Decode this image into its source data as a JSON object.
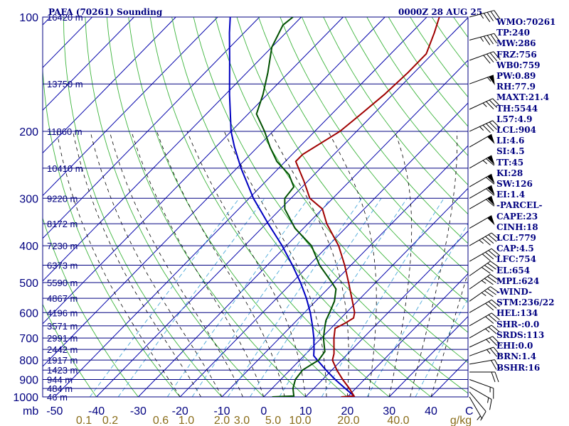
{
  "header": {
    "station_title": "PAFA (70261) Sounding",
    "time_title": "0000Z 28 AUG 25"
  },
  "indices": [
    "WMO:70261",
    "TP:240",
    "MW:286",
    "FRZ:756",
    "WB0:759",
    "PW:0.89",
    "RH:77.9",
    "MAXT:21.4",
    "TH:5544",
    "L57:4.9",
    "LCL:904",
    "LI:4.6",
    "SI:4.5",
    "TT:45",
    "KI:28",
    "SW:126",
    "EI:1.4",
    "-PARCEL-",
    "CAPE:23",
    "CINH:18",
    "LCL:779",
    "CAP:4.5",
    "LFC:754",
    "EL:654",
    "MPL:624",
    "-WIND-",
    "STM:236/22",
    "HEL:134",
    "SHR-:0.0",
    "SRDS:113",
    "EHI:0.0",
    "BRN:1.4",
    "BSHR:16"
  ],
  "colors": {
    "isobar": "#000080",
    "isotherm": "#0000aa",
    "dry_adiabat": "#3cb43c",
    "moist_adiabat": "#000000",
    "mixing_ratio": "#4aa8d8",
    "temperature": "#a00000",
    "dewpoint": "#005000",
    "parcel": "#0000c0",
    "wind_barb": "#000000"
  },
  "chart_data": {
    "type": "skew-t log-p",
    "pressure_axis": {
      "unit": "mb",
      "range": [
        1000,
        100
      ],
      "scale": "log",
      "tick_labels": [
        "100",
        "200",
        "300",
        "400",
        "500",
        "600",
        "700",
        "800",
        "900",
        "1000"
      ]
    },
    "temperature_axis": {
      "unit": "C",
      "ticks": [
        -50,
        -40,
        -30,
        -20,
        -10,
        0,
        10,
        20,
        30,
        40
      ],
      "tick_labels": [
        "-50",
        "-40",
        "-30",
        "-20",
        "-10",
        "0",
        "10",
        "20",
        "30",
        "40"
      ],
      "unit_label": "C"
    },
    "mixing_ratio_labels": [
      "0.1",
      "0.2",
      "0.6",
      "1.0",
      "2.0",
      "3.0",
      "5.0",
      "10.0",
      "20.0",
      "40.0",
      "g/kg"
    ],
    "mixing_ratio_values": [
      0.1,
      0.2,
      0.6,
      1.0,
      2.0,
      3.0,
      5.0,
      10.0,
      20.0,
      40.0
    ],
    "pressure_unit_label": "mb",
    "height_labels": [
      {
        "p": 100,
        "label": "16420 m"
      },
      {
        "p": 150,
        "label": "13750 m"
      },
      {
        "p": 200,
        "label": "11860 m"
      },
      {
        "p": 250,
        "label": "10410 m"
      },
      {
        "p": 300,
        "label": "9220 m"
      },
      {
        "p": 350,
        "label": "8172 m"
      },
      {
        "p": 400,
        "label": "7230 m"
      },
      {
        "p": 450,
        "label": "6373 m"
      },
      {
        "p": 500,
        "label": "5590 m"
      },
      {
        "p": 550,
        "label": "4867 m"
      },
      {
        "p": 600,
        "label": "4196 m"
      },
      {
        "p": 650,
        "label": "3571 m"
      },
      {
        "p": 700,
        "label": "2991 m"
      },
      {
        "p": 750,
        "label": "2442 m"
      },
      {
        "p": 800,
        "label": "1917 m"
      },
      {
        "p": 850,
        "label": "1423 m"
      },
      {
        "p": 900,
        "label": "944 m"
      },
      {
        "p": 950,
        "label": "484 m"
      },
      {
        "p": 1000,
        "label": "46 m"
      }
    ],
    "temperature_profile": [
      [
        1000,
        18.5
      ],
      [
        995,
        21.4
      ],
      [
        950,
        18.5
      ],
      [
        900,
        14.8
      ],
      [
        850,
        11.2
      ],
      [
        800,
        7.8
      ],
      [
        770,
        6.7
      ],
      [
        700,
        3.0
      ],
      [
        660,
        1.0
      ],
      [
        640,
        2.2
      ],
      [
        620,
        3.0
      ],
      [
        600,
        2.0
      ],
      [
        560,
        -1.2
      ],
      [
        500,
        -6.5
      ],
      [
        450,
        -11.5
      ],
      [
        400,
        -17.5
      ],
      [
        350,
        -25.5
      ],
      [
        320,
        -30.0
      ],
      [
        300,
        -35.5
      ],
      [
        270,
        -41.0
      ],
      [
        240,
        -47.5
      ],
      [
        230,
        -47.5
      ],
      [
        200,
        -44.0
      ],
      [
        180,
        -43.0
      ],
      [
        160,
        -42.0
      ],
      [
        140,
        -41.5
      ],
      [
        125,
        -41.5
      ],
      [
        110,
        -44.5
      ],
      [
        100,
        -47.0
      ]
    ],
    "dewpoint_profile": [
      [
        1000,
        2.0
      ],
      [
        995,
        7.0
      ],
      [
        950,
        5.0
      ],
      [
        900,
        3.5
      ],
      [
        850,
        3.0
      ],
      [
        800,
        4.5
      ],
      [
        760,
        4.0
      ],
      [
        700,
        0.5
      ],
      [
        660,
        -1.5
      ],
      [
        630,
        -3.0
      ],
      [
        600,
        -4.0
      ],
      [
        560,
        -5.5
      ],
      [
        520,
        -8.0
      ],
      [
        500,
        -10.5
      ],
      [
        450,
        -17.5
      ],
      [
        400,
        -24.0
      ],
      [
        360,
        -32.0
      ],
      [
        320,
        -39.0
      ],
      [
        300,
        -41.5
      ],
      [
        280,
        -42.0
      ],
      [
        260,
        -46.0
      ],
      [
        240,
        -52.0
      ],
      [
        220,
        -57.0
      ],
      [
        200,
        -62.0
      ],
      [
        180,
        -68.0
      ],
      [
        160,
        -71.0
      ],
      [
        140,
        -75.0
      ],
      [
        120,
        -80.0
      ],
      [
        105,
        -82.5
      ],
      [
        100,
        -82.0
      ]
    ],
    "parcel_profile": [
      [
        995,
        21.4
      ],
      [
        950,
        17.5
      ],
      [
        900,
        13.0
      ],
      [
        850,
        8.6
      ],
      [
        800,
        4.2
      ],
      [
        779,
        2.3
      ],
      [
        750,
        0.9
      ],
      [
        700,
        -1.8
      ],
      [
        650,
        -5.0
      ],
      [
        600,
        -8.6
      ],
      [
        550,
        -12.9
      ],
      [
        500,
        -18.0
      ],
      [
        450,
        -24.0
      ],
      [
        400,
        -31.0
      ],
      [
        350,
        -39.5
      ],
      [
        300,
        -49.0
      ],
      [
        250,
        -59.0
      ],
      [
        220,
        -65.5
      ],
      [
        200,
        -70.0
      ],
      [
        160,
        -79.0
      ],
      [
        130,
        -87.0
      ],
      [
        110,
        -93.5
      ],
      [
        100,
        -97.0
      ]
    ],
    "wind_profile": [
      {
        "p": 1000,
        "dir": 330,
        "kt": 5
      },
      {
        "p": 970,
        "dir": 320,
        "kt": 10
      },
      {
        "p": 940,
        "dir": 300,
        "kt": 15
      },
      {
        "p": 900,
        "dir": 290,
        "kt": 15
      },
      {
        "p": 860,
        "dir": 270,
        "kt": 20
      },
      {
        "p": 820,
        "dir": 260,
        "kt": 20
      },
      {
        "p": 780,
        "dir": 250,
        "kt": 25
      },
      {
        "p": 740,
        "dir": 245,
        "kt": 25
      },
      {
        "p": 700,
        "dir": 240,
        "kt": 25
      },
      {
        "p": 650,
        "dir": 240,
        "kt": 30
      },
      {
        "p": 600,
        "dir": 240,
        "kt": 30
      },
      {
        "p": 560,
        "dir": 235,
        "kt": 35
      },
      {
        "p": 520,
        "dir": 235,
        "kt": 35
      },
      {
        "p": 480,
        "dir": 235,
        "kt": 40
      },
      {
        "p": 440,
        "dir": 240,
        "kt": 40
      },
      {
        "p": 400,
        "dir": 240,
        "kt": 45
      },
      {
        "p": 360,
        "dir": 240,
        "kt": 50
      },
      {
        "p": 320,
        "dir": 240,
        "kt": 60
      },
      {
        "p": 300,
        "dir": 240,
        "kt": 60
      },
      {
        "p": 280,
        "dir": 240,
        "kt": 60
      },
      {
        "p": 250,
        "dir": 240,
        "kt": 65
      },
      {
        "p": 220,
        "dir": 240,
        "kt": 50
      },
      {
        "p": 200,
        "dir": 245,
        "kt": 45
      },
      {
        "p": 175,
        "dir": 245,
        "kt": 35
      },
      {
        "p": 150,
        "dir": 250,
        "kt": 55
      },
      {
        "p": 130,
        "dir": 250,
        "kt": 40
      },
      {
        "p": 115,
        "dir": 255,
        "kt": 45
      },
      {
        "p": 100,
        "dir": 255,
        "kt": 45
      }
    ]
  }
}
